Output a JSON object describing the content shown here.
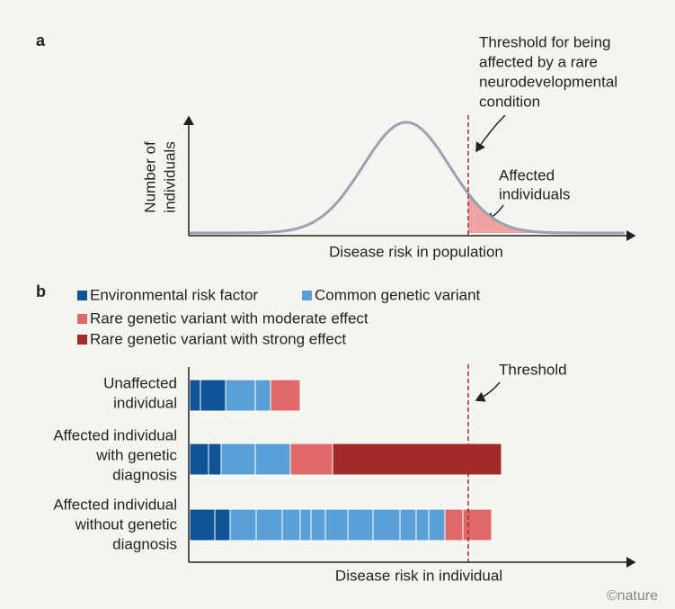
{
  "panel_a": {
    "label": "a",
    "threshold_note": [
      "Threshold for being",
      "affected by a rare",
      "neurodevelopmental",
      "condition"
    ],
    "y_axis_label": [
      "Number of",
      "individuals"
    ],
    "affected_note": [
      "Affected",
      "individuals"
    ],
    "x_axis_label": "Disease risk in population"
  },
  "panel_b": {
    "label": "b",
    "legend": [
      "Environmental risk factor",
      "Common genetic variant",
      "Rare genetic variant with moderate effect",
      "Rare genetic variant with strong effect"
    ],
    "threshold_note": "Threshold",
    "rows": [
      [
        "Unaffected",
        "individual"
      ],
      [
        "Affected individual",
        "with genetic",
        "diagnosis"
      ],
      [
        "Affected individual",
        "without genetic",
        "diagnosis"
      ]
    ],
    "x_axis_label": "Disease risk in individual"
  },
  "credit": "©nature"
}
